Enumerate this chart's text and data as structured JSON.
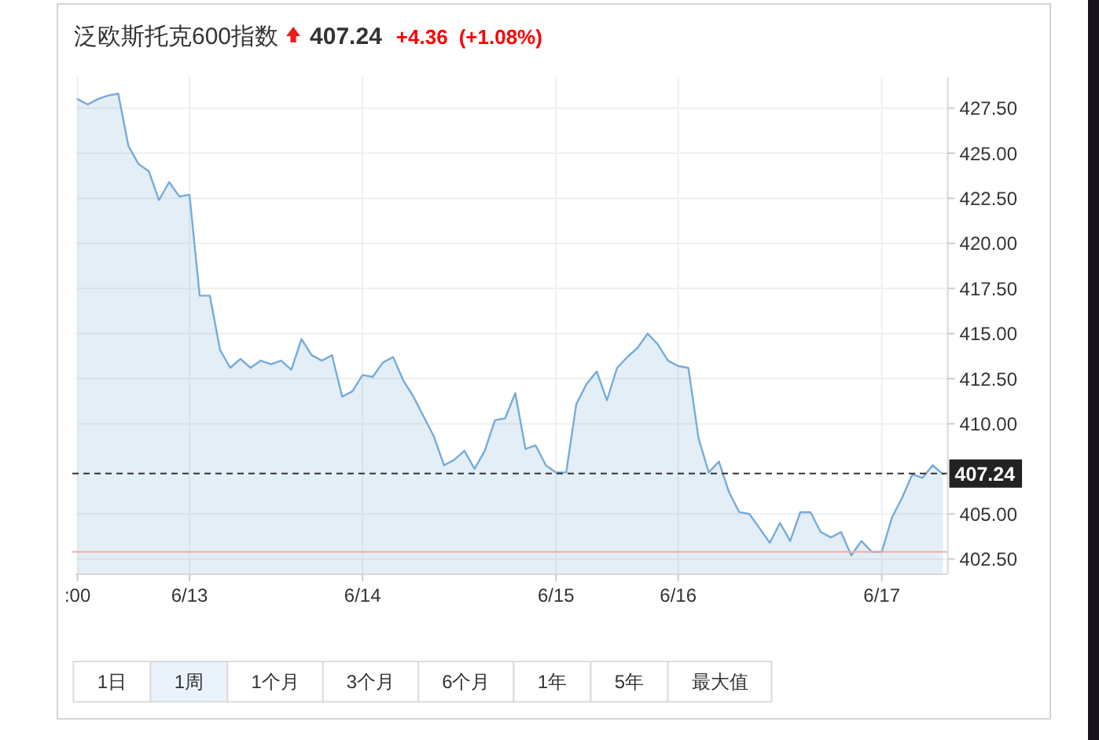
{
  "chart_data": {
    "type": "area",
    "title": "泛欧斯托克600指数",
    "annotations": [
      "407.24",
      "+4.36",
      "(+1.08%)",
      "1日",
      "1周",
      "1个月",
      "3个月",
      "6个月",
      "1年",
      "5年",
      "最大值"
    ],
    "categories": [
      ":00",
      null,
      null,
      null,
      null,
      null,
      null,
      null,
      null,
      null,
      null,
      "6/13",
      null,
      null,
      null,
      null,
      null,
      null,
      null,
      null,
      null,
      null,
      null,
      null,
      null,
      null,
      null,
      null,
      "6/14",
      null,
      null,
      null,
      null,
      null,
      null,
      null,
      null,
      null,
      null,
      null,
      null,
      null,
      null,
      null,
      null,
      null,
      null,
      "6/15",
      null,
      null,
      null,
      null,
      null,
      null,
      null,
      null,
      null,
      null,
      null,
      "6/16",
      null,
      null,
      null,
      null,
      null,
      null,
      null,
      null,
      null,
      null,
      null,
      null,
      null,
      null,
      null,
      null,
      null,
      null,
      null,
      "6/17",
      null,
      null,
      null,
      null,
      null,
      null
    ],
    "series": [
      {
        "color": "#76acd9",
        "values": [
          428.0,
          427.7,
          428.0,
          428.2,
          428.3,
          425.4,
          424.4,
          424.0,
          422.4,
          423.4,
          422.6,
          422.7,
          417.1,
          417.1,
          414.1,
          413.1,
          413.6,
          413.1,
          413.5,
          413.3,
          413.5,
          413.0,
          414.7,
          413.8,
          413.5,
          413.8,
          411.5,
          411.8,
          412.7,
          412.6,
          413.4,
          413.7,
          412.4,
          411.5,
          410.4,
          409.3,
          407.7,
          408.0,
          408.5,
          407.5,
          408.5,
          410.2,
          410.3,
          411.7,
          408.6,
          408.8,
          407.7,
          407.3,
          407.3,
          411.1,
          412.2,
          412.9,
          411.3,
          413.1,
          413.7,
          414.2,
          415.0,
          414.4,
          413.5,
          413.2,
          413.1,
          409.2,
          407.3,
          407.9,
          406.2,
          405.1,
          405.0,
          404.2,
          403.4,
          404.5,
          403.5,
          405.1,
          405.1,
          404.0,
          403.7,
          404.0,
          402.7,
          403.5,
          402.9,
          402.9,
          404.8,
          405.9,
          407.2,
          407.0,
          407.7,
          407.2
        ]
      }
    ],
    "ylim": [
      401.7,
      429.2
    ],
    "yticks": [
      {
        "value": 402.5,
        "label": "402.50"
      },
      {
        "value": 405,
        "label": "405.00"
      },
      {
        "value": 410,
        "label": "410.00"
      },
      {
        "value": 412.5,
        "label": "412.50"
      },
      {
        "value": 415,
        "label": "415.00"
      },
      {
        "value": 417.5,
        "label": "417.50"
      },
      {
        "value": 420,
        "label": "420.00"
      },
      {
        "value": 422.5,
        "label": "422.50"
      },
      {
        "value": 425,
        "label": "425.00"
      },
      {
        "value": 427.5,
        "label": "427.50"
      }
    ],
    "ref_lines": [
      {
        "axis": "y",
        "value": 402.9,
        "color": "#f2aaaa",
        "line_style": "solid"
      },
      {
        "axis": "y",
        "value": 407.24,
        "label": "407.24",
        "color": "#333333",
        "line_style": "dashed"
      }
    ],
    "grid": true
  }
}
